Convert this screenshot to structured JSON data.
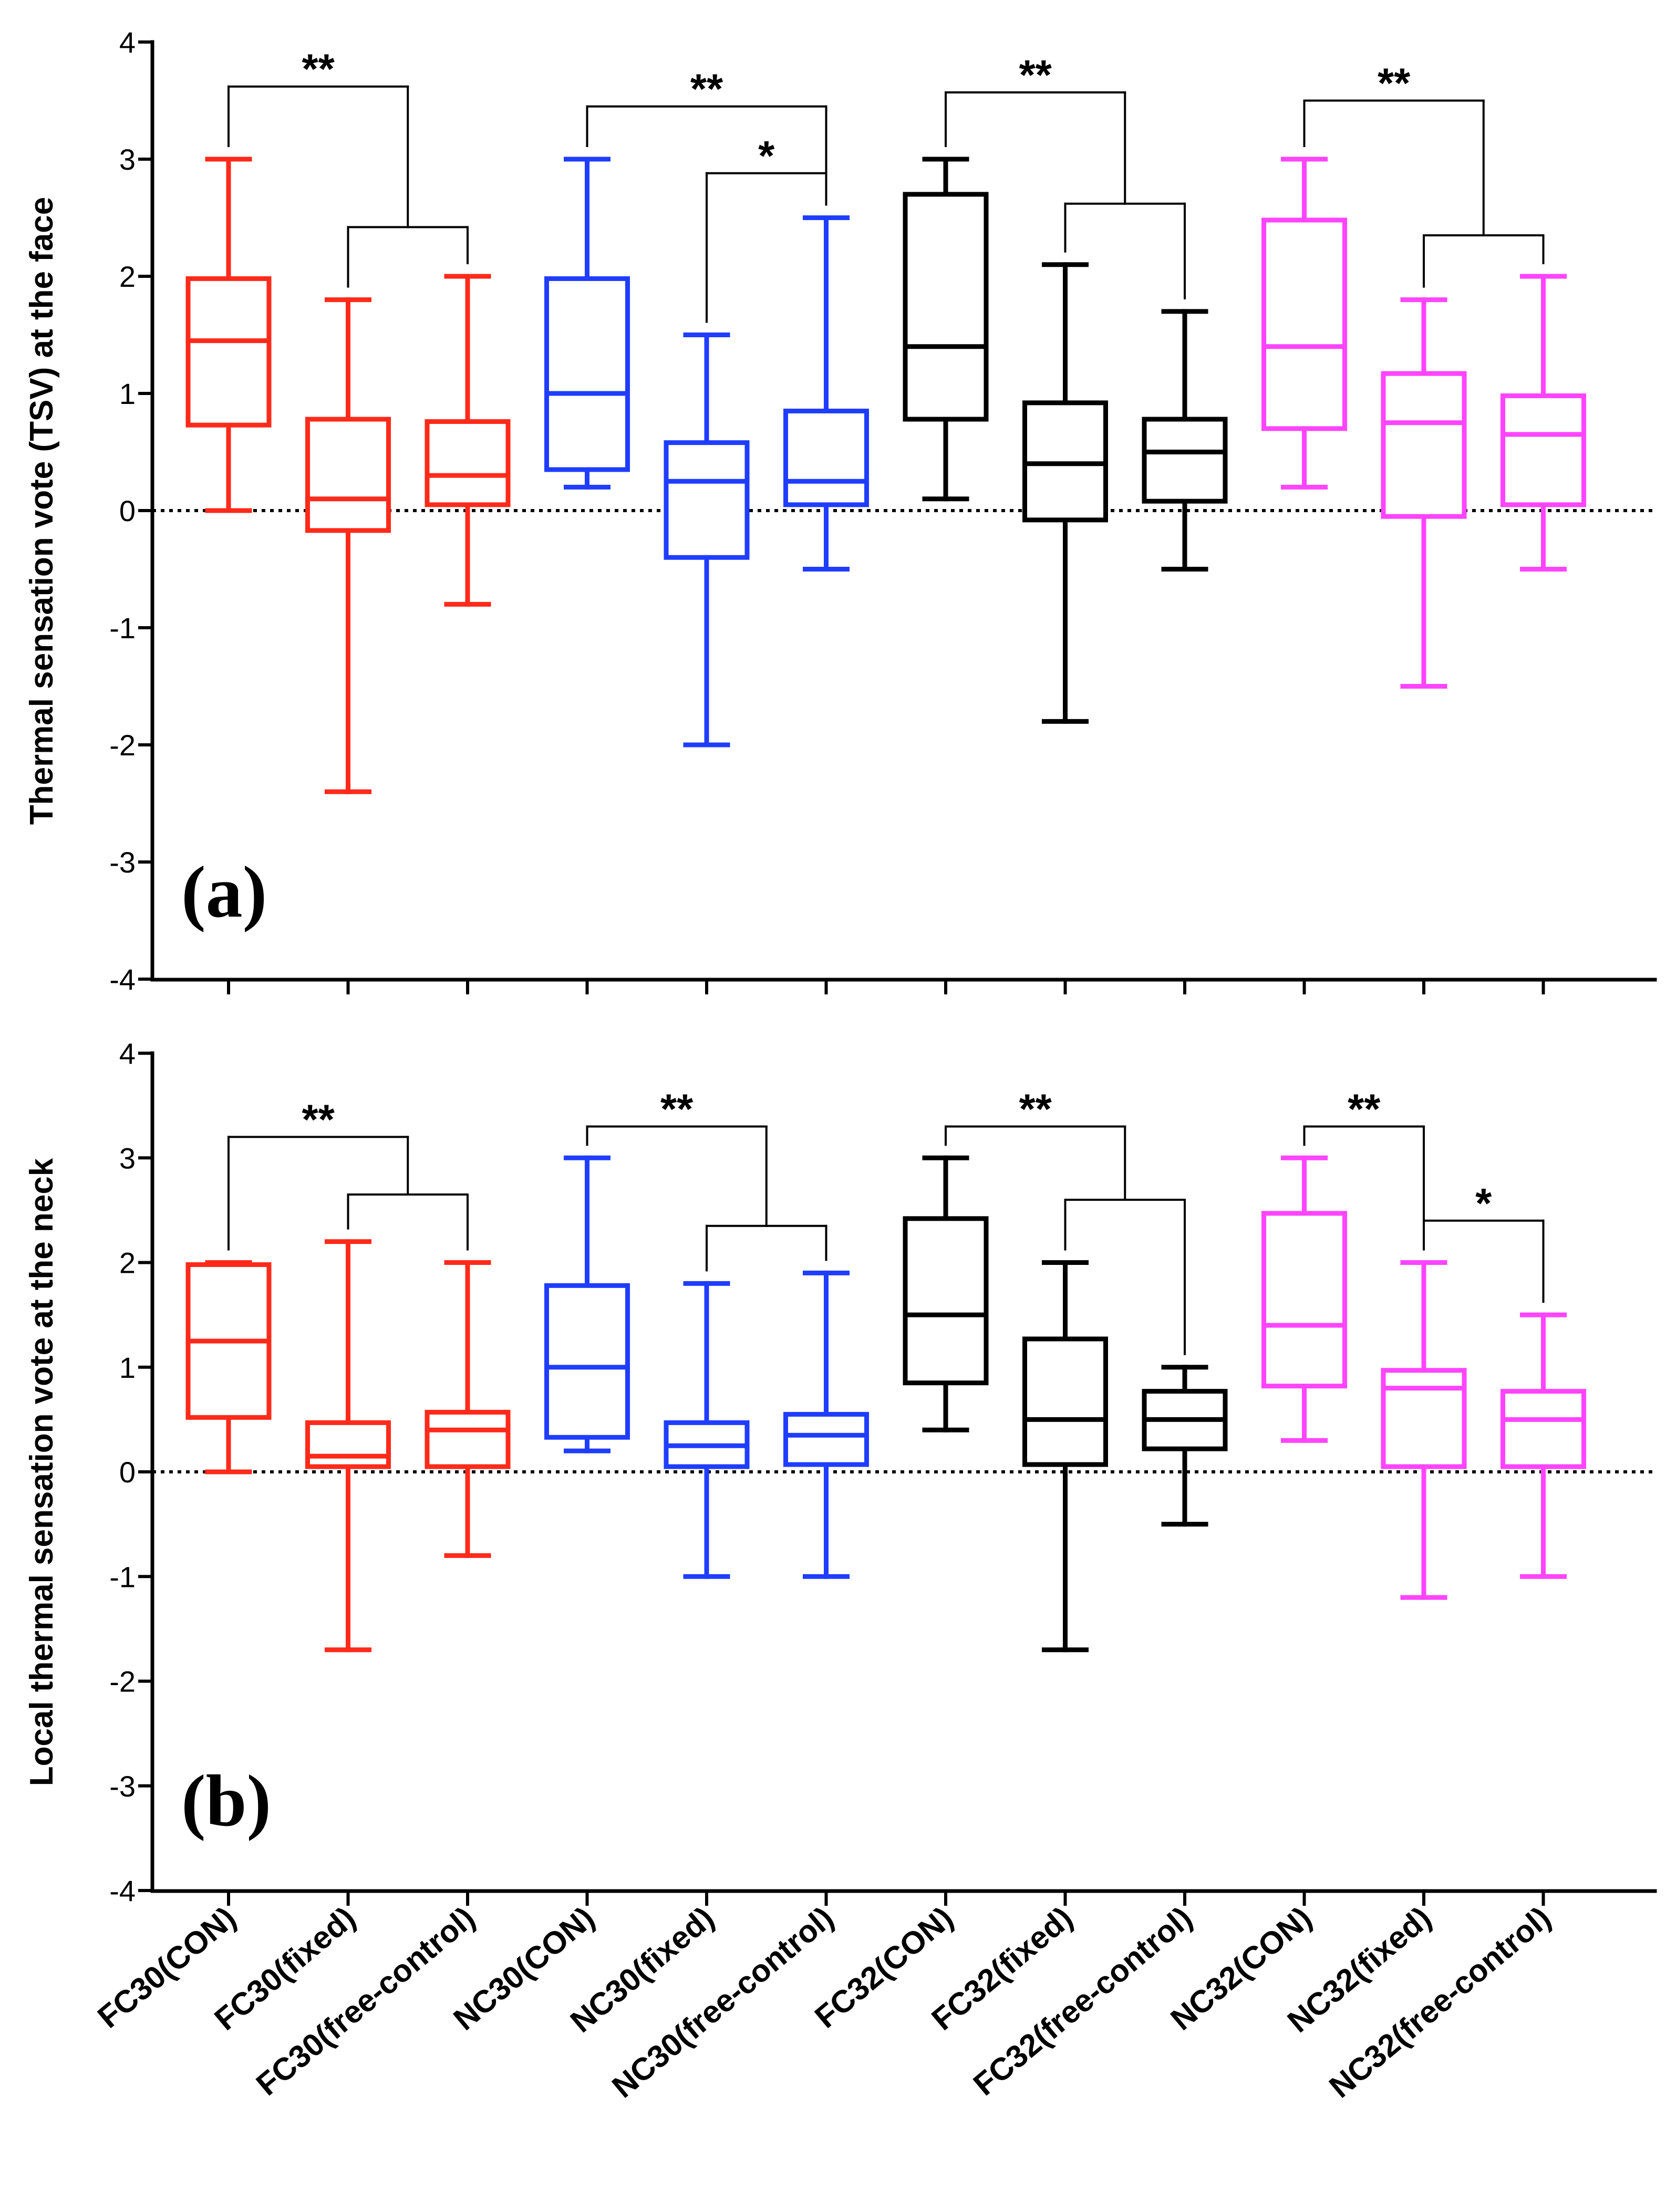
{
  "colors": {
    "red": "#ff2a1a",
    "blue": "#1f3dff",
    "black": "#000000",
    "magenta": "#ff44ff"
  },
  "chart_data": [
    {
      "type": "box",
      "panel_label": "(a)",
      "ylabel": "Thermal sensation vote (TSV) at the face",
      "ylim": [
        -4,
        4
      ],
      "yticks": [
        "4",
        "3",
        "2",
        "1",
        "0",
        "-1",
        "-2",
        "-3",
        "-4"
      ],
      "reference_line": 0,
      "categories": [
        "FC30(CON)",
        "FC30(fixed)",
        "FC30(free-control)",
        "NC30(CON)",
        "NC30(fixed)",
        "NC30(free-control)",
        "FC32(CON)",
        "FC32(fixed)",
        "FC32(free-control)",
        "NC32(CON)",
        "NC32(fixed)",
        "NC32(free-control)"
      ],
      "boxes": [
        {
          "category": "FC30(CON)",
          "color": "red",
          "min": 0,
          "q1": 0.73,
          "median": 1.45,
          "q3": 1.98,
          "max": 3.0
        },
        {
          "category": "FC30(fixed)",
          "color": "red",
          "min": -2.4,
          "q1": -0.17,
          "median": 0.1,
          "q3": 0.78,
          "max": 1.8
        },
        {
          "category": "FC30(free-control)",
          "color": "red",
          "min": -0.8,
          "q1": 0.05,
          "median": 0.3,
          "q3": 0.76,
          "max": 2.0
        },
        {
          "category": "NC30(CON)",
          "color": "blue",
          "min": 0.2,
          "q1": 0.35,
          "median": 1.0,
          "q3": 1.98,
          "max": 3.0
        },
        {
          "category": "NC30(fixed)",
          "color": "blue",
          "min": -2.0,
          "q1": -0.4,
          "median": 0.25,
          "q3": 0.58,
          "max": 1.5
        },
        {
          "category": "NC30(free-control)",
          "color": "blue",
          "min": -0.5,
          "q1": 0.05,
          "median": 0.25,
          "q3": 0.85,
          "max": 2.5
        },
        {
          "category": "FC32(CON)",
          "color": "black",
          "min": 0.1,
          "q1": 0.78,
          "median": 1.4,
          "q3": 2.7,
          "max": 3.0
        },
        {
          "category": "FC32(fixed)",
          "color": "black",
          "min": -1.8,
          "q1": -0.08,
          "median": 0.4,
          "q3": 0.92,
          "max": 2.1
        },
        {
          "category": "FC32(free-control)",
          "color": "black",
          "min": -0.5,
          "q1": 0.08,
          "median": 0.5,
          "q3": 0.78,
          "max": 1.7
        },
        {
          "category": "NC32(CON)",
          "color": "magenta",
          "min": 0.2,
          "q1": 0.7,
          "median": 1.4,
          "q3": 2.48,
          "max": 3.0
        },
        {
          "category": "NC32(fixed)",
          "color": "magenta",
          "min": -1.5,
          "q1": -0.05,
          "median": 0.75,
          "q3": 1.17,
          "max": 1.8
        },
        {
          "category": "NC32(free-control)",
          "color": "magenta",
          "min": -0.5,
          "q1": 0.05,
          "median": 0.65,
          "q3": 0.98,
          "max": 2.0
        }
      ],
      "significance": [
        {
          "label": "**",
          "left": "FC30(CON)",
          "right_pair": [
            "FC30(fixed)",
            "FC30(free-control)"
          ],
          "level": 3.62,
          "sub_level": 2.42
        },
        {
          "label": "**",
          "left": "NC30(CON)",
          "right": "NC30(free-control)",
          "level": 3.45
        },
        {
          "label": "*",
          "left": "NC30(fixed)",
          "right": "NC30(free-control)",
          "level": 2.88
        },
        {
          "label": "**",
          "left": "FC32(CON)",
          "right_pair": [
            "FC32(fixed)",
            "FC32(free-control)"
          ],
          "level": 3.57,
          "sub_level": 2.62
        },
        {
          "label": "**",
          "left": "NC32(CON)",
          "right_pair": [
            "NC32(fixed)",
            "NC32(free-control)"
          ],
          "level": 3.5,
          "sub_level": 2.35
        }
      ]
    },
    {
      "type": "box",
      "panel_label": "(b)",
      "ylabel": "Local thermal sensation vote at the neck",
      "ylim": [
        -4,
        4
      ],
      "yticks": [
        "4",
        "3",
        "2",
        "1",
        "0",
        "-1",
        "-2",
        "-3",
        "-4"
      ],
      "reference_line": 0,
      "categories": [
        "FC30(CON)",
        "FC30(fixed)",
        "FC30(free-control)",
        "NC30(CON)",
        "NC30(fixed)",
        "NC30(free-control)",
        "FC32(CON)",
        "FC32(fixed)",
        "FC32(free-control)",
        "NC32(CON)",
        "NC32(fixed)",
        "NC32(free-control)"
      ],
      "boxes": [
        {
          "category": "FC30(CON)",
          "color": "red",
          "min": 0,
          "q1": 0.52,
          "median": 1.25,
          "q3": 1.98,
          "max": 2.0
        },
        {
          "category": "FC30(fixed)",
          "color": "red",
          "min": -1.7,
          "q1": 0.05,
          "median": 0.15,
          "q3": 0.47,
          "max": 2.2
        },
        {
          "category": "FC30(free-control)",
          "color": "red",
          "min": -0.8,
          "q1": 0.05,
          "median": 0.4,
          "q3": 0.57,
          "max": 2.0
        },
        {
          "category": "NC30(CON)",
          "color": "blue",
          "min": 0.2,
          "q1": 0.33,
          "median": 1.0,
          "q3": 1.78,
          "max": 3.0
        },
        {
          "category": "NC30(fixed)",
          "color": "blue",
          "min": -1.0,
          "q1": 0.05,
          "median": 0.25,
          "q3": 0.47,
          "max": 1.8
        },
        {
          "category": "NC30(free-control)",
          "color": "blue",
          "min": -1.0,
          "q1": 0.07,
          "median": 0.35,
          "q3": 0.55,
          "max": 1.9
        },
        {
          "category": "FC32(CON)",
          "color": "black",
          "min": 0.4,
          "q1": 0.85,
          "median": 1.5,
          "q3": 2.42,
          "max": 3.0
        },
        {
          "category": "FC32(fixed)",
          "color": "black",
          "min": -1.7,
          "q1": 0.07,
          "median": 0.5,
          "q3": 1.27,
          "max": 2.0
        },
        {
          "category": "FC32(free-control)",
          "color": "black",
          "min": -0.5,
          "q1": 0.22,
          "median": 0.5,
          "q3": 0.77,
          "max": 1.0
        },
        {
          "category": "NC32(CON)",
          "color": "magenta",
          "min": 0.3,
          "q1": 0.82,
          "median": 1.4,
          "q3": 2.47,
          "max": 3.0
        },
        {
          "category": "NC32(fixed)",
          "color": "magenta",
          "min": -1.2,
          "q1": 0.05,
          "median": 0.8,
          "q3": 0.97,
          "max": 2.0
        },
        {
          "category": "NC32(free-control)",
          "color": "magenta",
          "min": -1.0,
          "q1": 0.05,
          "median": 0.5,
          "q3": 0.77,
          "max": 1.5
        }
      ],
      "significance": [
        {
          "label": "**",
          "left": "FC30(CON)",
          "right_pair": [
            "FC30(fixed)",
            "FC30(free-control)"
          ],
          "level": 3.2,
          "sub_level": 2.65
        },
        {
          "label": "**",
          "left": "NC30(CON)",
          "right_pair": [
            "NC30(fixed)",
            "NC30(free-control)"
          ],
          "level": 3.3,
          "sub_level": 2.35
        },
        {
          "label": "**",
          "left": "FC32(CON)",
          "right_pair": [
            "FC32(fixed)",
            "FC32(free-control)"
          ],
          "level": 3.3,
          "sub_level": 2.6
        },
        {
          "label": "**",
          "left": "NC32(CON)",
          "right": "NC32(fixed)",
          "level": 3.3
        },
        {
          "label": "*",
          "left": "NC32(fixed)",
          "right": "NC32(free-control)",
          "level": 2.4
        }
      ]
    }
  ]
}
